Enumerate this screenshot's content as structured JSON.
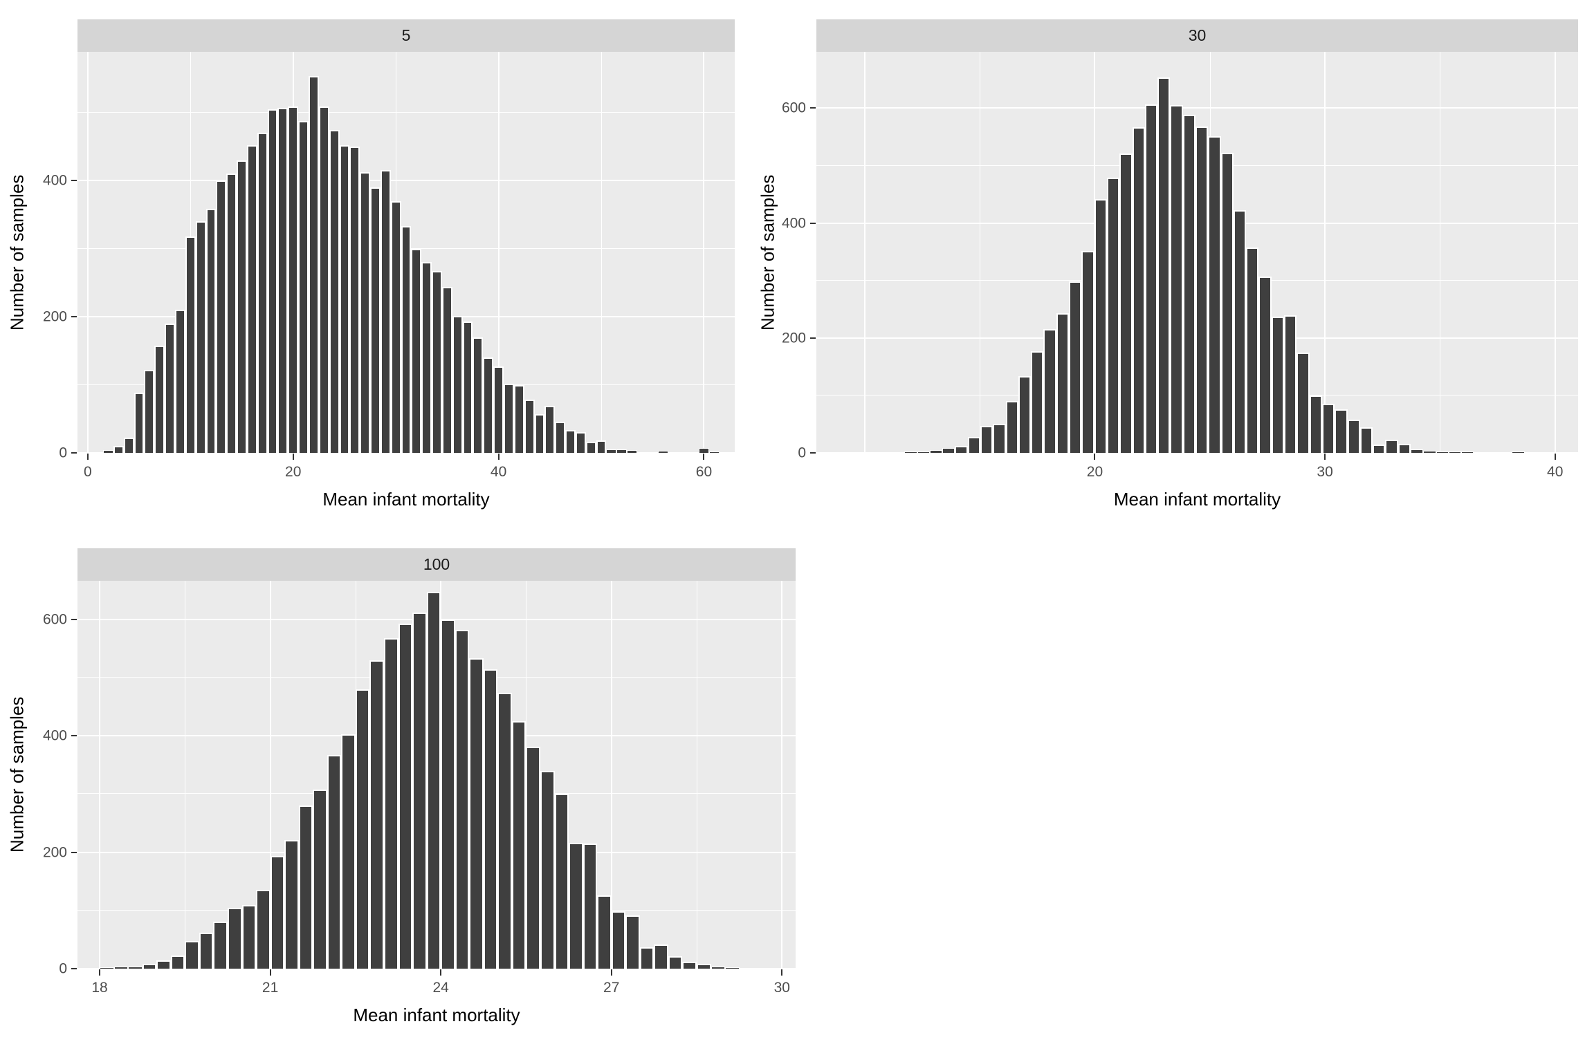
{
  "labels": {
    "x_axis": "Mean infant mortality",
    "y_axis": "Number of samples"
  },
  "colors": {
    "bar_fill": "#3F3F3F",
    "bar_outline": "#FFFFFF",
    "panel_background": "#EBEBEB",
    "strip_background": "#D5D5D5",
    "gridline": "#FFFFFF",
    "tick_mark": "#333333",
    "tick_label": "#4D4D4D",
    "axis_title": "#000000"
  },
  "chart_data": [
    {
      "type": "bar",
      "subtype": "histogram",
      "facet": "5",
      "sample_size": 5,
      "xlabel": "Mean infant mortality",
      "ylabel": "Number of samples",
      "bin_width": 1,
      "bin_start": 2,
      "bin_step": 1,
      "values": [
        4,
        10,
        22,
        88,
        122,
        157,
        190,
        210,
        318,
        340,
        358,
        400,
        410,
        430,
        452,
        470,
        505,
        507,
        509,
        487,
        553,
        509,
        474,
        452,
        450,
        412,
        390,
        415,
        370,
        333,
        300,
        280,
        267,
        244,
        201,
        193,
        170,
        140,
        127,
        102,
        100,
        78,
        57,
        69,
        46,
        34,
        30,
        16,
        18,
        5,
        5,
        4,
        0,
        0,
        3,
        0,
        0,
        0,
        7,
        2
      ],
      "x_ticks": [
        0,
        20,
        40,
        60
      ],
      "x_minor": [
        10,
        30,
        50
      ],
      "x_major_extra": [],
      "y_ticks": [
        0,
        200,
        400
      ],
      "y_minor": [
        100,
        300,
        500
      ],
      "xlim": [
        -1.0,
        63.0
      ],
      "ylim": [
        0,
        589
      ],
      "grid": true,
      "legend": "none"
    },
    {
      "type": "bar",
      "subtype": "histogram",
      "facet": "30",
      "sample_size": 30,
      "xlabel": "Mean infant mortality",
      "ylabel": "Number of samples",
      "bin_width": 0.55,
      "bin_start": 12.0,
      "bin_step": 0.55,
      "values": [
        2,
        3,
        5,
        8,
        12,
        28,
        47,
        50,
        90,
        133,
        177,
        215,
        243,
        298,
        351,
        442,
        479,
        521,
        567,
        606,
        654,
        605,
        589,
        568,
        551,
        522,
        422,
        357,
        307,
        237,
        240,
        175,
        100,
        85,
        76,
        58,
        44,
        14,
        23,
        16,
        6,
        4,
        3,
        2,
        2,
        0,
        0,
        1,
        2,
        1
      ],
      "x_ticks": [
        20,
        30,
        40
      ],
      "x_minor": [
        15,
        25,
        35
      ],
      "x_major_extra": [
        10
      ],
      "y_ticks": [
        0,
        200,
        400,
        600
      ],
      "y_minor": [
        100,
        300,
        500
      ],
      "xlim": [
        7.9,
        41.0
      ],
      "ylim": [
        0,
        698
      ],
      "grid": true,
      "legend": "none"
    },
    {
      "type": "bar",
      "subtype": "histogram",
      "facet": "100",
      "sample_size": 100,
      "xlabel": "Mean infant mortality",
      "ylabel": "Number of samples",
      "bin_width": 0.25,
      "bin_start": 18.125,
      "bin_step": 0.25,
      "values": [
        2,
        3,
        4,
        8,
        14,
        22,
        48,
        62,
        81,
        104,
        109,
        135,
        193,
        221,
        280,
        308,
        367,
        402,
        480,
        529,
        568,
        592,
        611,
        647,
        600,
        582,
        533,
        514,
        474,
        425,
        381,
        340,
        300,
        216,
        215,
        126,
        98,
        92,
        37,
        42,
        21,
        12,
        8,
        4,
        2
      ],
      "x_ticks": [
        18,
        21,
        24,
        27,
        30
      ],
      "x_minor": [
        19.5,
        22.5,
        25.5,
        28.5
      ],
      "x_major_extra": [],
      "y_ticks": [
        0,
        200,
        400,
        600
      ],
      "y_minor": [
        100,
        300,
        500
      ],
      "xlim": [
        17.61,
        30.24
      ],
      "ylim": [
        0,
        666
      ],
      "grid": true,
      "legend": "none"
    }
  ]
}
